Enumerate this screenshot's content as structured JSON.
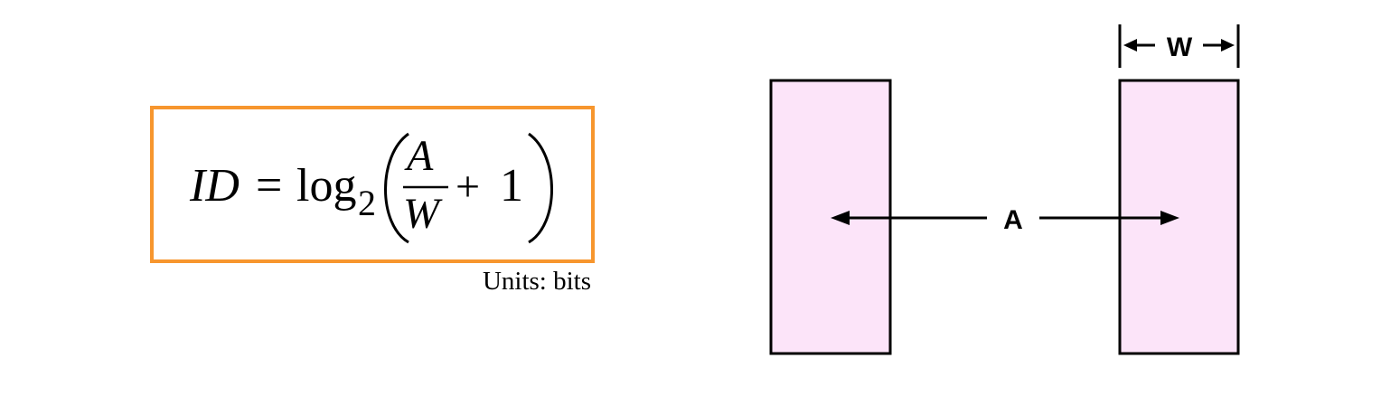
{
  "formula": {
    "lhs": "ID",
    "equals": "=",
    "log": "log",
    "base": "2",
    "numerator": "A",
    "denominator": "W",
    "plus": "+",
    "one": "1"
  },
  "units_caption": "Units: bits",
  "diagram": {
    "distance_label": "A",
    "width_label": "W"
  },
  "colors": {
    "box_border": "#F7962E",
    "target_fill": "#FCE4F9",
    "stroke": "#000000"
  }
}
